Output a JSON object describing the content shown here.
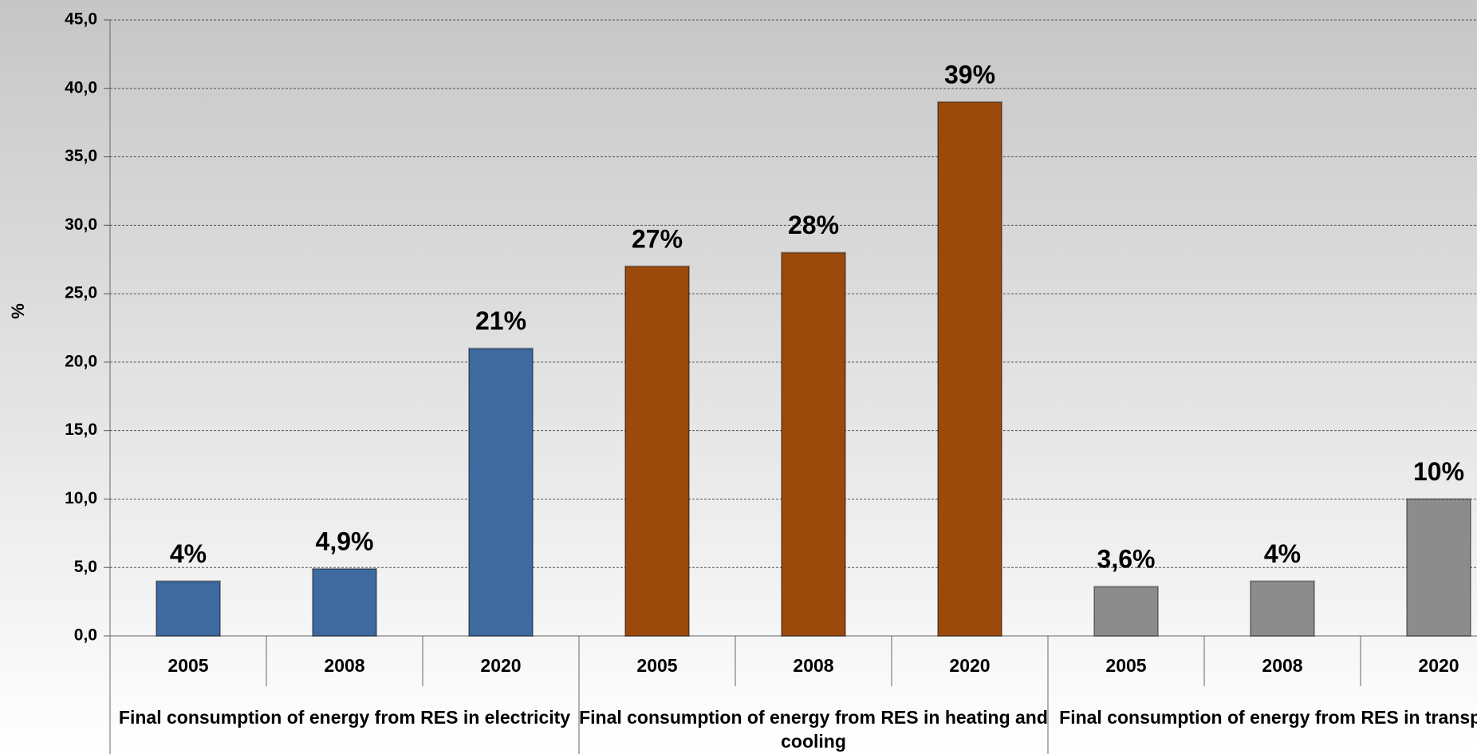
{
  "chart_data": {
    "type": "bar",
    "ylabel": "%",
    "ylim": [
      0,
      45
    ],
    "yticks": [
      {
        "value": 0,
        "label": "0,0"
      },
      {
        "value": 5,
        "label": "5,0"
      },
      {
        "value": 10,
        "label": "10,0"
      },
      {
        "value": 15,
        "label": "15,0"
      },
      {
        "value": 20,
        "label": "20,0"
      },
      {
        "value": 25,
        "label": "25,0"
      },
      {
        "value": 30,
        "label": "30,0"
      },
      {
        "value": 35,
        "label": "35,0"
      },
      {
        "value": 40,
        "label": "40,0"
      },
      {
        "value": 45,
        "label": "45,0"
      }
    ],
    "grid": true,
    "groups": [
      {
        "name": "Final consumption of energy from RES in electricity",
        "color": "#3e6a9f",
        "categories": [
          "2005",
          "2008",
          "2020"
        ],
        "values": [
          4,
          4.9,
          21
        ],
        "value_labels": [
          "4%",
          "4,9%",
          "21%"
        ]
      },
      {
        "name": "Final consumption of energy from RES in heating and cooling",
        "color": "#9c4a0c",
        "categories": [
          "2005",
          "2008",
          "2020"
        ],
        "values": [
          27,
          28,
          39
        ],
        "value_labels": [
          "27%",
          "28%",
          "39%"
        ]
      },
      {
        "name": "Final consumption of energy from RES in transport",
        "color": "#8c8c8c",
        "categories": [
          "2005",
          "2008",
          "2020"
        ],
        "values": [
          3.6,
          4,
          10
        ],
        "value_labels": [
          "3,6%",
          "4%",
          "10%"
        ]
      }
    ]
  }
}
